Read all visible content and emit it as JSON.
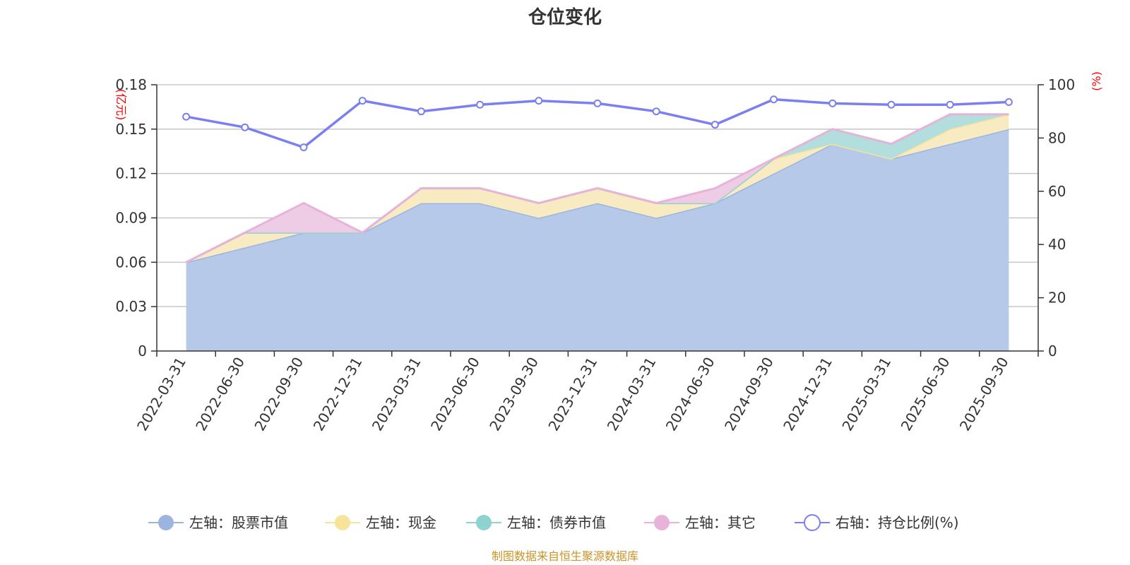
{
  "chart_data": {
    "type": "area",
    "title": "仓位变化",
    "left_unit": "(亿元)",
    "right_unit": "(%)",
    "categories": [
      "2022-03-31",
      "2022-06-30",
      "2022-09-30",
      "2022-12-31",
      "2023-03-31",
      "2023-06-30",
      "2023-09-30",
      "2023-12-31",
      "2024-03-31",
      "2024-06-30",
      "2024-09-30",
      "2024-12-31",
      "2025-03-31",
      "2025-06-30",
      "2025-09-30"
    ],
    "left_ylim": [
      0,
      0.18
    ],
    "left_ticks": [
      "0",
      "0.03",
      "0.06",
      "0.09",
      "0.12",
      "0.15",
      "0.18"
    ],
    "left_tick_values": [
      0,
      0.03,
      0.06,
      0.09,
      0.12,
      0.15,
      0.18
    ],
    "right_ylim": [
      0,
      100
    ],
    "right_ticks": [
      "0",
      "20",
      "40",
      "60",
      "80",
      "100"
    ],
    "right_tick_values": [
      0,
      20,
      40,
      60,
      80,
      100
    ],
    "series": [
      {
        "name": "左轴：股票市值",
        "axis": "left",
        "stack": true,
        "color": "#9bb5e0",
        "fill": "#b6c9e8",
        "values": [
          0.06,
          0.07,
          0.08,
          0.08,
          0.1,
          0.1,
          0.09,
          0.1,
          0.09,
          0.1,
          0.12,
          0.14,
          0.13,
          0.14,
          0.15
        ]
      },
      {
        "name": "左轴：现金",
        "axis": "left",
        "stack": true,
        "color": "#f7e39a",
        "fill": "#f8ebc2",
        "values": [
          0.0,
          0.01,
          0.0,
          0.0,
          0.01,
          0.01,
          0.01,
          0.01,
          0.01,
          0.0,
          0.01,
          0.0,
          0.0,
          0.01,
          0.01
        ]
      },
      {
        "name": "左轴：债券市值",
        "axis": "left",
        "stack": true,
        "color": "#8fd3d1",
        "fill": "#b2dedd",
        "values": [
          0.0,
          0.0,
          0.0,
          0.0,
          0.0,
          0.0,
          0.0,
          0.0,
          0.0,
          0.0,
          0.0,
          0.01,
          0.01,
          0.01,
          0.0
        ]
      },
      {
        "name": "左轴：其它",
        "axis": "left",
        "stack": true,
        "color": "#e8b3da",
        "fill": "#efcce5",
        "values": [
          0.0,
          0.0,
          0.02,
          0.0,
          0.0,
          0.0,
          0.0,
          0.0,
          0.0,
          0.01,
          0.0,
          0.0,
          0.0,
          0.0,
          0.0
        ]
      },
      {
        "name": "右轴：持仓比例(%)",
        "axis": "right",
        "stack": false,
        "color": "#7b7ff0",
        "values": [
          88,
          84,
          76.5,
          94,
          90,
          92.5,
          94,
          93,
          90,
          85,
          94.5,
          93,
          92.5,
          92.5,
          93.5
        ]
      }
    ],
    "legend_position": "bottom",
    "source": "制图数据来自恒生聚源数据库"
  }
}
